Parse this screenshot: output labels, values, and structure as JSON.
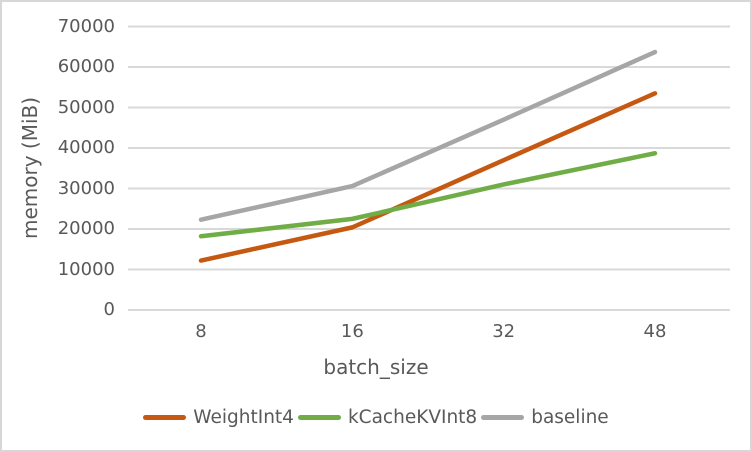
{
  "chart_data": {
    "type": "line",
    "title": "",
    "xlabel": "batch_size",
    "ylabel": "memory (MiB)",
    "categories": [
      "8",
      "16",
      "32",
      "48"
    ],
    "series": [
      {
        "name": "WeightInt4",
        "color": "#c65911",
        "values": [
          12200,
          20400,
          37000,
          53500
        ]
      },
      {
        "name": "kCacheKVInt8",
        "color": "#70ad47",
        "values": [
          18200,
          22500,
          31000,
          38700
        ]
      },
      {
        "name": "baseline",
        "color": "#a6a6a6",
        "values": [
          22300,
          30600,
          47000,
          63700
        ]
      }
    ],
    "ylim": [
      0,
      70000
    ],
    "yticks": [
      0,
      10000,
      20000,
      30000,
      40000,
      50000,
      60000,
      70000
    ],
    "grid": "horizontal-only",
    "legend_position": "bottom-center",
    "layout": {
      "grid_color": "#d9d9d9",
      "axis_line_color": "#d9d9d9",
      "text_color": "#595959",
      "border_color": "#d7d7d7",
      "background": "#ffffff",
      "line_width": 4.5
    }
  }
}
